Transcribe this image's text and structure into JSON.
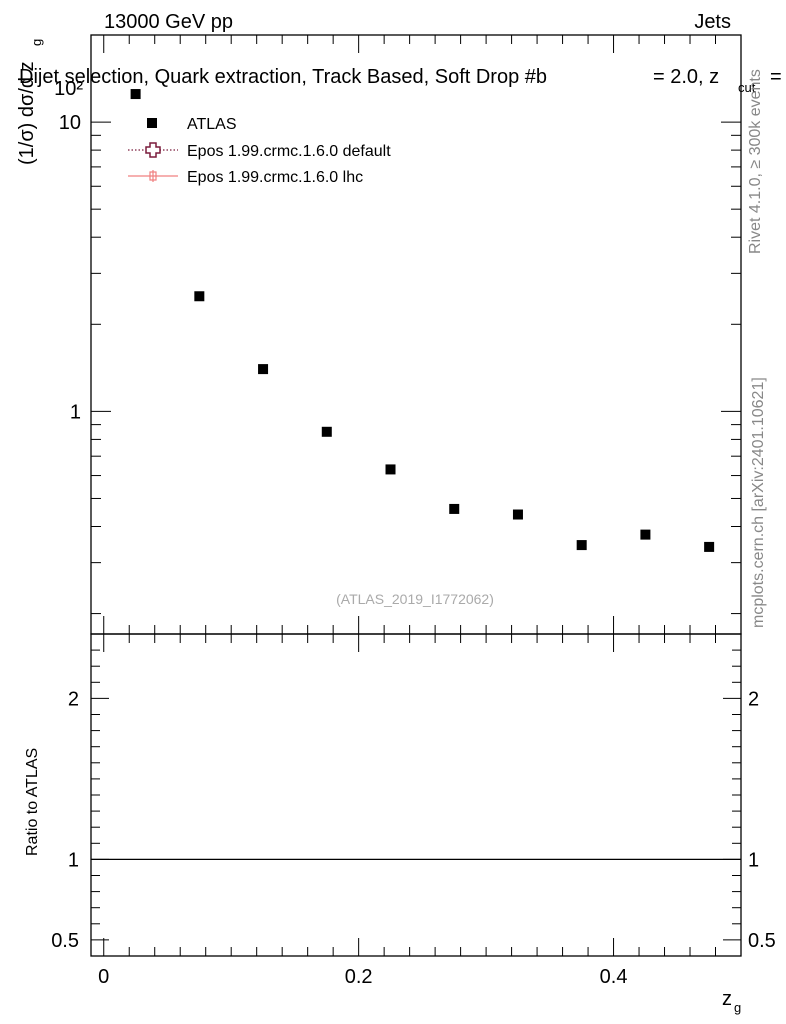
{
  "header": {
    "energy": "13000 GeV pp",
    "category": "Jets",
    "plot_title": "Dijet selection, Quark extraction, Track Based, Soft Drop #b",
    "title_eta": "= 2.0, z",
    "title_sub": "cut",
    "title_end": "="
  },
  "side_labels": {
    "rivet": "Rivet 4.1.0, ≥ 300k events",
    "mcplots": "mcplots.cern.ch [arXiv:2401.10621]"
  },
  "chart_data": [
    {
      "type": "scatter",
      "role": "main",
      "yscale": "log",
      "ylim": [
        0.17,
        20
      ],
      "xlim": [
        -0.01,
        0.5
      ],
      "ylabel": "(1/σ) dσ/d z",
      "ylabel_sub": "g",
      "y_tick_labels": [
        {
          "value": 1,
          "label": "1"
        },
        {
          "value": 10,
          "label": "10"
        },
        {
          "value": 100,
          "label": "10²"
        }
      ],
      "watermark": "(ATLAS_2019_I1772062)",
      "legend": [
        {
          "name": "ATLAS",
          "style": "square",
          "color": "#000000"
        },
        {
          "name": "Epos 1.99.crmc.1.6.0 default",
          "style": "open-cross-dotted",
          "color": "#7a1b3c"
        },
        {
          "name": "Epos 1.99.crmc.1.6.0 lhc",
          "style": "cross-solid",
          "color": "#f08080"
        }
      ],
      "series": [
        {
          "name": "ATLAS",
          "x": [
            0.025,
            0.075,
            0.125,
            0.175,
            0.225,
            0.275,
            0.325,
            0.375,
            0.425,
            0.475
          ],
          "values": [
            12.5,
            2.5,
            1.4,
            0.85,
            0.63,
            0.46,
            0.44,
            0.345,
            0.375,
            0.34
          ]
        }
      ]
    },
    {
      "type": "line",
      "role": "ratio",
      "ylim": [
        0.4,
        2.4
      ],
      "ylabel": "Ratio to ATLAS",
      "xlabel": "z",
      "xlabel_sub": "g",
      "y_ticks": [
        0.5,
        1,
        2
      ],
      "y_tick_labels": [
        "0.5",
        "1",
        "2"
      ],
      "x_ticks": [
        0,
        0.2,
        0.4
      ],
      "x_tick_labels": [
        "0",
        "0.2",
        "0.4"
      ],
      "reference_line": 1
    }
  ]
}
